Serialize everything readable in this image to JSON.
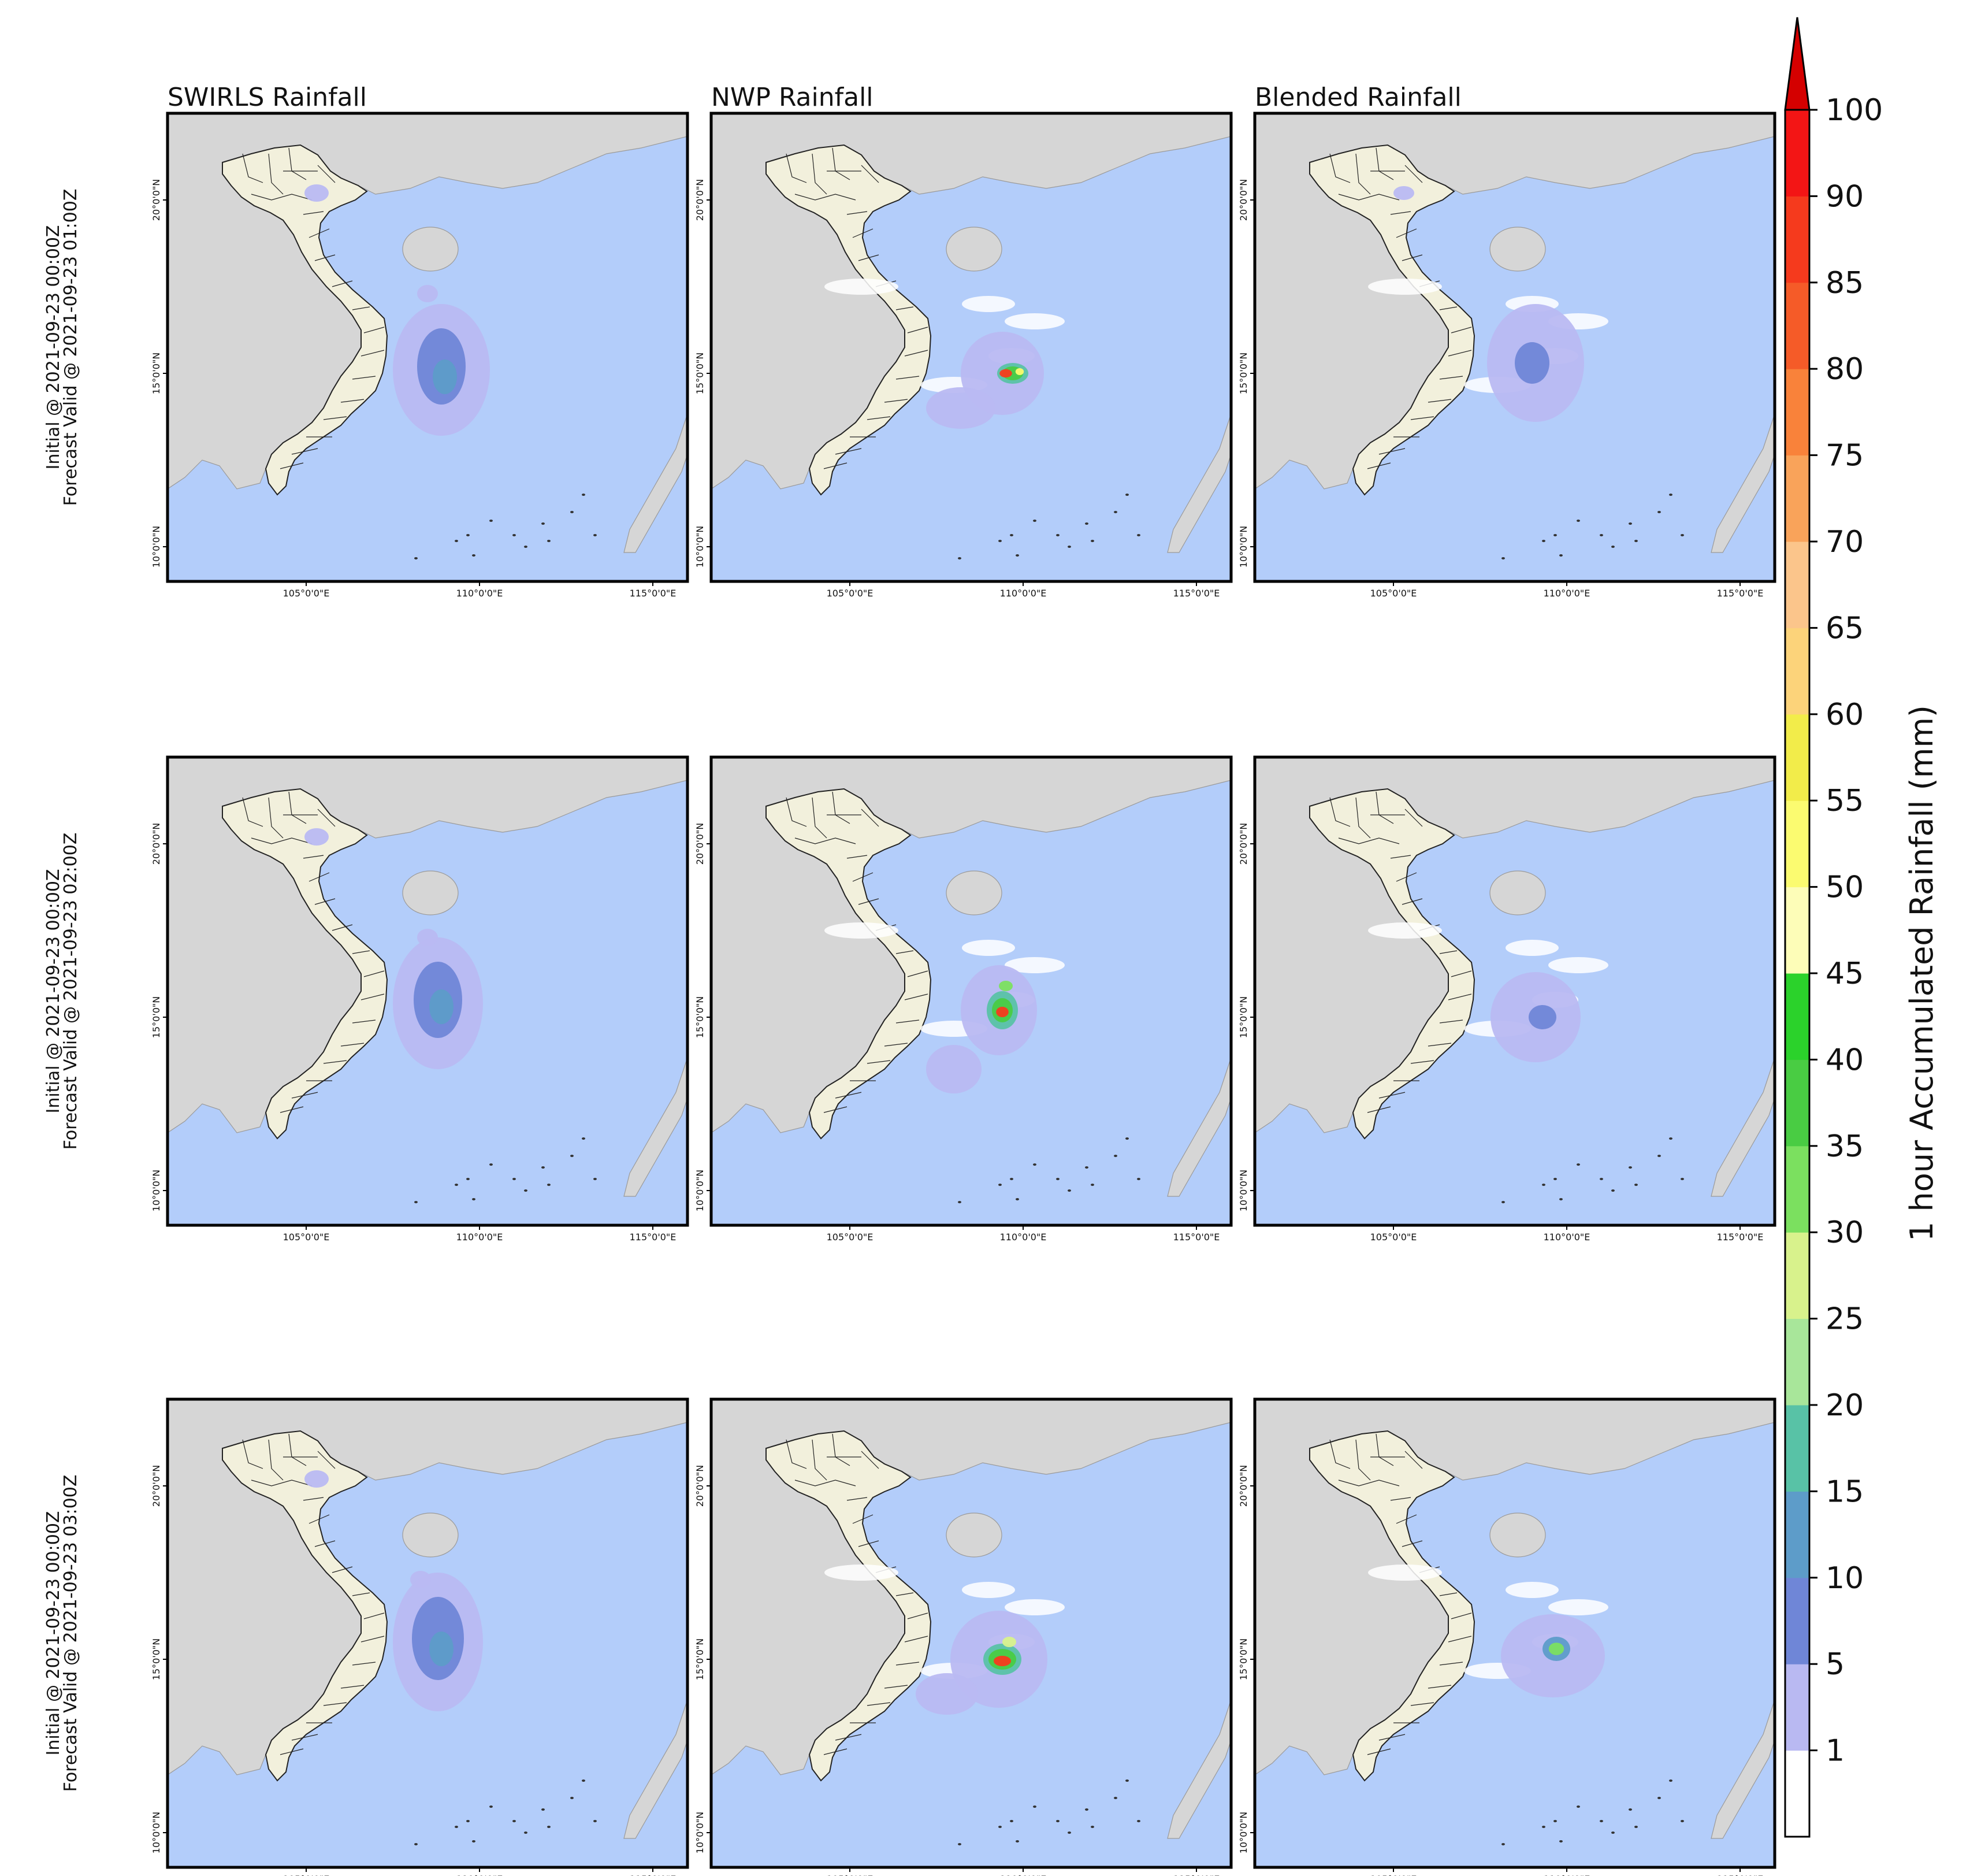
{
  "columns": [
    {
      "title": "SWIRLS Rainfall"
    },
    {
      "title": "NWP Rainfall"
    },
    {
      "title": "Blended Rainfall"
    }
  ],
  "rows": [
    {
      "line1": "Initial @ 2021-09-23 00:00Z",
      "line2": "Forecast Valid @ 2021-09-23 01:00Z"
    },
    {
      "line1": "Initial @ 2021-09-23 00:00Z",
      "line2": "Forecast Valid @ 2021-09-23 02:00Z"
    },
    {
      "line1": "Initial @ 2021-09-23 00:00Z",
      "line2": "Forecast Valid @ 2021-09-23 03:00Z"
    }
  ],
  "map": {
    "lon_ticks": [
      "105°0'0\"E",
      "110°0'0\"E",
      "115°0'0\"E"
    ],
    "lat_ticks": [
      "20°0'0\"N",
      "15°0'0\"N",
      "10°0'0\"N"
    ],
    "colors": {
      "ocean": "#b3cdfa",
      "land_foreign": "#d6d6d6",
      "land_vietnam": "#f2f0dc",
      "border": "#222222"
    }
  },
  "colorbar": {
    "label": "1 hour Accumulated Rainfall (mm)",
    "tick_labels": [
      "1",
      "5",
      "10",
      "15",
      "20",
      "25",
      "30",
      "35",
      "40",
      "45",
      "50",
      "55",
      "60",
      "65",
      "70",
      "75",
      "80",
      "85",
      "90",
      "100"
    ],
    "segment_colors": [
      "#ffffff",
      "#b9b9f2",
      "#6f86d7",
      "#5d9cc9",
      "#58c2a6",
      "#a8e69a",
      "#d8f28c",
      "#7be05f",
      "#49cc43",
      "#2bd22b",
      "#fdfdb8",
      "#fbfb70",
      "#f2ec4a",
      "#fcd37a",
      "#fbc58b",
      "#f9a35a",
      "#f9823a",
      "#f55b28",
      "#f53a1d",
      "#f31515",
      "#d40000"
    ]
  },
  "panels": [
    {
      "row": 0,
      "col": 0,
      "source": "SWIRLS",
      "rain_areas": [
        {
          "lon": 108.9,
          "lat": 15.1,
          "level": 1,
          "rx": 1.4,
          "ry": 1.9
        },
        {
          "lon": 108.9,
          "lat": 15.2,
          "level": 2,
          "rx": 0.7,
          "ry": 1.1
        },
        {
          "lon": 109.0,
          "lat": 14.9,
          "level": 3,
          "rx": 0.35,
          "ry": 0.5
        },
        {
          "lon": 108.5,
          "lat": 17.3,
          "level": 1,
          "rx": 0.3,
          "ry": 0.25
        },
        {
          "lon": 105.3,
          "lat": 20.2,
          "level": 1,
          "rx": 0.35,
          "ry": 0.25
        }
      ]
    },
    {
      "row": 0,
      "col": 1,
      "source": "NWP",
      "rain_areas": [
        {
          "lon": 109.4,
          "lat": 15.0,
          "level": 1,
          "rx": 1.2,
          "ry": 1.2
        },
        {
          "lon": 108.2,
          "lat": 14.0,
          "level": 1,
          "rx": 1.0,
          "ry": 0.6
        },
        {
          "lon": 109.7,
          "lat": 15.0,
          "level": 4,
          "rx": 0.45,
          "ry": 0.3
        },
        {
          "lon": 109.7,
          "lat": 15.0,
          "level": 8,
          "rx": 0.3,
          "ry": 0.2
        },
        {
          "lon": 109.5,
          "lat": 15.0,
          "level": 18,
          "rx": 0.18,
          "ry": 0.12
        },
        {
          "lon": 109.9,
          "lat": 15.05,
          "level": 11,
          "rx": 0.12,
          "ry": 0.1
        }
      ]
    },
    {
      "row": 0,
      "col": 2,
      "source": "Blended",
      "rain_areas": [
        {
          "lon": 109.1,
          "lat": 15.3,
          "level": 1,
          "rx": 1.4,
          "ry": 1.7
        },
        {
          "lon": 109.0,
          "lat": 15.3,
          "level": 2,
          "rx": 0.5,
          "ry": 0.6
        },
        {
          "lon": 105.3,
          "lat": 20.2,
          "level": 1,
          "rx": 0.3,
          "ry": 0.2
        }
      ]
    },
    {
      "row": 1,
      "col": 0,
      "source": "SWIRLS",
      "rain_areas": [
        {
          "lon": 108.8,
          "lat": 15.4,
          "level": 1,
          "rx": 1.3,
          "ry": 1.9
        },
        {
          "lon": 108.8,
          "lat": 15.5,
          "level": 2,
          "rx": 0.7,
          "ry": 1.1
        },
        {
          "lon": 108.9,
          "lat": 15.3,
          "level": 3,
          "rx": 0.35,
          "ry": 0.5
        },
        {
          "lon": 108.5,
          "lat": 17.3,
          "level": 1,
          "rx": 0.3,
          "ry": 0.25
        },
        {
          "lon": 105.3,
          "lat": 20.2,
          "level": 1,
          "rx": 0.35,
          "ry": 0.25
        }
      ]
    },
    {
      "row": 1,
      "col": 1,
      "source": "NWP",
      "rain_areas": [
        {
          "lon": 109.3,
          "lat": 15.2,
          "level": 1,
          "rx": 1.1,
          "ry": 1.3
        },
        {
          "lon": 108.0,
          "lat": 13.5,
          "level": 1,
          "rx": 0.8,
          "ry": 0.7
        },
        {
          "lon": 109.4,
          "lat": 15.2,
          "level": 4,
          "rx": 0.45,
          "ry": 0.55
        },
        {
          "lon": 109.4,
          "lat": 15.2,
          "level": 8,
          "rx": 0.3,
          "ry": 0.35
        },
        {
          "lon": 109.4,
          "lat": 15.15,
          "level": 18,
          "rx": 0.18,
          "ry": 0.15
        },
        {
          "lon": 109.5,
          "lat": 15.9,
          "level": 7,
          "rx": 0.2,
          "ry": 0.15
        }
      ]
    },
    {
      "row": 1,
      "col": 2,
      "source": "Blended",
      "rain_areas": [
        {
          "lon": 109.1,
          "lat": 15.0,
          "level": 1,
          "rx": 1.3,
          "ry": 1.3
        },
        {
          "lon": 109.3,
          "lat": 15.0,
          "level": 2,
          "rx": 0.4,
          "ry": 0.35
        }
      ]
    },
    {
      "row": 2,
      "col": 0,
      "source": "SWIRLS",
      "rain_areas": [
        {
          "lon": 108.8,
          "lat": 15.5,
          "level": 1,
          "rx": 1.3,
          "ry": 2.0
        },
        {
          "lon": 108.8,
          "lat": 15.6,
          "level": 2,
          "rx": 0.75,
          "ry": 1.2
        },
        {
          "lon": 108.9,
          "lat": 15.3,
          "level": 3,
          "rx": 0.35,
          "ry": 0.5
        },
        {
          "lon": 108.3,
          "lat": 17.3,
          "level": 1,
          "rx": 0.3,
          "ry": 0.25
        },
        {
          "lon": 105.3,
          "lat": 20.2,
          "level": 1,
          "rx": 0.35,
          "ry": 0.25
        }
      ]
    },
    {
      "row": 2,
      "col": 1,
      "source": "NWP",
      "rain_areas": [
        {
          "lon": 109.3,
          "lat": 15.0,
          "level": 1,
          "rx": 1.4,
          "ry": 1.4
        },
        {
          "lon": 107.8,
          "lat": 14.0,
          "level": 1,
          "rx": 0.9,
          "ry": 0.6
        },
        {
          "lon": 109.4,
          "lat": 15.0,
          "level": 4,
          "rx": 0.55,
          "ry": 0.45
        },
        {
          "lon": 109.4,
          "lat": 15.0,
          "level": 8,
          "rx": 0.4,
          "ry": 0.3
        },
        {
          "lon": 109.4,
          "lat": 14.95,
          "level": 18,
          "rx": 0.25,
          "ry": 0.15
        },
        {
          "lon": 109.6,
          "lat": 15.5,
          "level": 6,
          "rx": 0.2,
          "ry": 0.15
        }
      ]
    },
    {
      "row": 2,
      "col": 2,
      "source": "Blended",
      "rain_areas": [
        {
          "lon": 109.6,
          "lat": 15.1,
          "level": 1,
          "rx": 1.5,
          "ry": 1.2
        },
        {
          "lon": 109.7,
          "lat": 15.3,
          "level": 3,
          "rx": 0.4,
          "ry": 0.35
        },
        {
          "lon": 109.7,
          "lat": 15.3,
          "level": 7,
          "rx": 0.22,
          "ry": 0.18
        }
      ]
    }
  ]
}
